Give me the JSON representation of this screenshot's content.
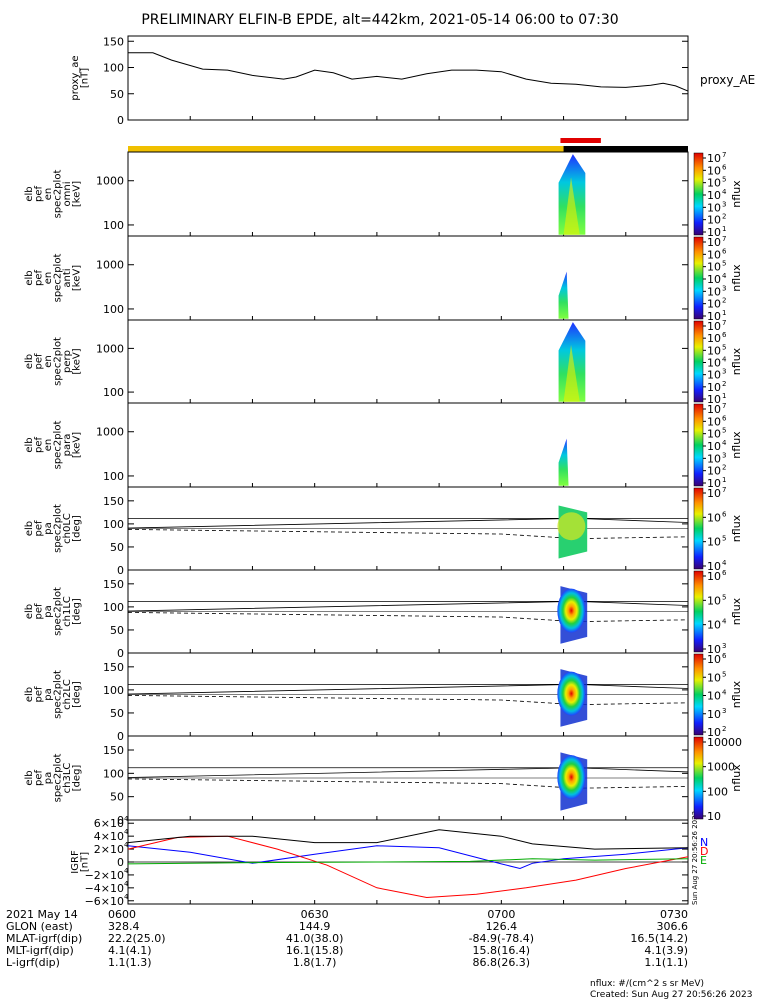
{
  "title": "PRELIMINARY ELFIN-B EPDE, alt=442km, 2021-05-14 06:00 to 07:30",
  "created_stamp": "Sun Aug 27 20:56:26 2023",
  "flux_units": "nflux: #/(cm^2 s sr MeV)",
  "created": "Created: Sun Aug 27 20:56:26 2023",
  "chart_data": [
    {
      "type": "line",
      "id": "proxy_ae",
      "ylabel_lines": [
        "proxy_ae",
        "[nT]"
      ],
      "legend": "proxy_AE",
      "ylim": [
        0,
        160
      ],
      "yticks": [
        "0",
        "50",
        "100",
        "150"
      ],
      "ytick_values": [
        0,
        50,
        100,
        150
      ],
      "x_range_min": [
        0,
        90
      ],
      "series": [
        {
          "name": "proxy_AE",
          "x": [
            0,
            4,
            7,
            12,
            16,
            20,
            25,
            27,
            30,
            33,
            36,
            40,
            44,
            48,
            52,
            56,
            60,
            64,
            68,
            72,
            76,
            80,
            84,
            86,
            88,
            90
          ],
          "y": [
            128,
            128,
            114,
            97,
            95,
            85,
            78,
            82,
            95,
            90,
            78,
            83,
            78,
            88,
            95,
            95,
            92,
            78,
            70,
            68,
            63,
            62,
            66,
            70,
            65,
            55
          ]
        }
      ]
    },
    {
      "type": "heatmap",
      "id": "omni",
      "ylabel_lines": [
        "elb",
        "pef",
        "en",
        "spec2plot",
        "omni",
        "[keV]"
      ],
      "yscale": "log",
      "yticks": [
        "100",
        "1000"
      ],
      "colorbar": {
        "label": "nflux",
        "ticks": [
          "10",
          "10",
          "10",
          "10",
          "10",
          "10",
          "10"
        ],
        "exps": [
          "1",
          "2",
          "3",
          "4",
          "5",
          "6",
          "7"
        ]
      }
    },
    {
      "type": "heatmap",
      "id": "anti",
      "ylabel_lines": [
        "elb",
        "pef",
        "en",
        "spec2plot",
        "anti",
        "[keV]"
      ],
      "yscale": "log",
      "yticks": [
        "100",
        "1000"
      ],
      "colorbar": {
        "label": "nflux",
        "ticks": [
          "10",
          "10",
          "10",
          "10",
          "10",
          "10",
          "10"
        ],
        "exps": [
          "1",
          "2",
          "3",
          "4",
          "5",
          "6",
          "7"
        ]
      }
    },
    {
      "type": "heatmap",
      "id": "perp",
      "ylabel_lines": [
        "elb",
        "pef",
        "en",
        "spec2plot",
        "perp",
        "[keV]"
      ],
      "yscale": "log",
      "yticks": [
        "100",
        "1000"
      ],
      "colorbar": {
        "label": "nflux",
        "ticks": [
          "10",
          "10",
          "10",
          "10",
          "10",
          "10",
          "10"
        ],
        "exps": [
          "1",
          "2",
          "3",
          "4",
          "5",
          "6",
          "7"
        ]
      }
    },
    {
      "type": "heatmap",
      "id": "para",
      "ylabel_lines": [
        "elb",
        "pef",
        "en",
        "spec2plot",
        "para",
        "[keV]"
      ],
      "yscale": "log",
      "yticks": [
        "100",
        "1000"
      ],
      "colorbar": {
        "label": "nflux",
        "ticks": [
          "10",
          "10",
          "10",
          "10",
          "10",
          "10",
          "10"
        ],
        "exps": [
          "1",
          "2",
          "3",
          "4",
          "5",
          "6",
          "7"
        ]
      }
    },
    {
      "type": "heatmap",
      "id": "ch0LC",
      "ylabel_lines": [
        "elb",
        "pef",
        "pa",
        "spec2plot",
        "ch0LC",
        "[deg]"
      ],
      "ylim": [
        0,
        180
      ],
      "yticks": [
        "0",
        "50",
        "100",
        "150"
      ],
      "colorbar": {
        "label": "nflux",
        "ticks": [
          "10",
          "10",
          "10",
          "10"
        ],
        "exps": [
          "4",
          "5",
          "6",
          "7"
        ]
      }
    },
    {
      "type": "heatmap",
      "id": "ch1LC",
      "ylabel_lines": [
        "elb",
        "pef",
        "pa",
        "spec2plot",
        "ch1LC",
        "[deg]"
      ],
      "ylim": [
        0,
        180
      ],
      "yticks": [
        "0",
        "50",
        "100",
        "150"
      ],
      "colorbar": {
        "label": "nflux",
        "ticks": [
          "10",
          "10",
          "10",
          "10"
        ],
        "exps": [
          "3",
          "4",
          "5",
          "6"
        ]
      }
    },
    {
      "type": "heatmap",
      "id": "ch2LC",
      "ylabel_lines": [
        "elb",
        "pef",
        "pa",
        "spec2plot",
        "ch2LC",
        "[deg]"
      ],
      "ylim": [
        0,
        180
      ],
      "yticks": [
        "0",
        "50",
        "100",
        "150"
      ],
      "colorbar": {
        "label": "nflux",
        "ticks": [
          "10",
          "10",
          "10",
          "10",
          "10"
        ],
        "exps": [
          "2",
          "3",
          "4",
          "5",
          "6"
        ]
      }
    },
    {
      "type": "heatmap",
      "id": "ch3LC",
      "ylabel_lines": [
        "elb",
        "pef",
        "pa",
        "spec2plot",
        "ch3LC",
        "[deg]"
      ],
      "ylim": [
        0,
        180
      ],
      "yticks": [
        "0",
        "50",
        "100",
        "150"
      ],
      "colorbar": {
        "label": "nflux",
        "ticks": [
          "10",
          "100",
          "1000",
          "10000"
        ],
        "exps": [
          "",
          "",
          "",
          ""
        ]
      }
    },
    {
      "type": "line",
      "id": "igrf",
      "ylabel_lines": [
        "IGRF",
        "[nT]"
      ],
      "ylim": [
        -65000,
        65000
      ],
      "yticks": [
        "−6×10",
        "−4×10",
        "−2×10",
        "0",
        "2×10",
        "4×10",
        "6×10"
      ],
      "ytick_exps": [
        "4",
        "4",
        "4",
        "",
        "4",
        "4",
        "4"
      ],
      "ytick_values": [
        -60000,
        -40000,
        -20000,
        0,
        20000,
        40000,
        60000
      ],
      "x_range_min": [
        0,
        90
      ],
      "series": [
        {
          "name": "N",
          "color": "#0000ff",
          "x": [
            0,
            10,
            20,
            30,
            40,
            50,
            60,
            63,
            65,
            70,
            80,
            90
          ],
          "y": [
            25000,
            15000,
            -2000,
            12000,
            25000,
            22000,
            -3000,
            -10000,
            -2000,
            5000,
            12000,
            22000
          ]
        },
        {
          "name": "D",
          "color": "#ff0000",
          "x": [
            0,
            8,
            16,
            24,
            32,
            40,
            48,
            56,
            64,
            72,
            80,
            90
          ],
          "y": [
            20000,
            38000,
            40000,
            20000,
            -5000,
            -40000,
            -55000,
            -50000,
            -40000,
            -28000,
            -10000,
            8000
          ]
        },
        {
          "name": "E",
          "color": "#00aa00",
          "x": [
            0,
            20,
            40,
            55,
            65,
            75,
            90
          ],
          "y": [
            -3000,
            -1000,
            0,
            1000,
            5000,
            3000,
            5000
          ]
        },
        {
          "name": "",
          "color": "#000000",
          "x": [
            0,
            10,
            20,
            30,
            40,
            50,
            60,
            65,
            75,
            90
          ],
          "y": [
            30000,
            40000,
            40000,
            30000,
            30000,
            50000,
            40000,
            28000,
            20000,
            22000
          ]
        }
      ]
    }
  ],
  "flags": {
    "x_range_min": [
      0,
      90
    ],
    "yellow_until_min": 70,
    "black_from_min": 70,
    "red_range_min": [
      69.5,
      76
    ]
  },
  "ephemeris": {
    "rows": [
      {
        "label": "2021 May 14",
        "values": [
          "0600",
          "0630",
          "0700",
          "0730"
        ]
      },
      {
        "label": "GLON (east)",
        "values": [
          "328.4",
          "144.9",
          "126.4",
          "306.6"
        ]
      },
      {
        "label": "MLAT-igrf(dip)",
        "values": [
          "22.2(25.0)",
          "41.0(38.0)",
          "-84.9(-78.4)",
          "16.5(14.2)"
        ]
      },
      {
        "label": "MLT-igrf(dip)",
        "values": [
          "4.1(4.1)",
          "16.1(15.8)",
          "15.8(16.4)",
          "4.1(3.9)"
        ]
      },
      {
        "label": "L-igrf(dip)",
        "values": [
          "1.1(1.3)",
          "1.8(1.7)",
          "86.8(26.3)",
          "1.1(1.1)"
        ]
      }
    ]
  }
}
